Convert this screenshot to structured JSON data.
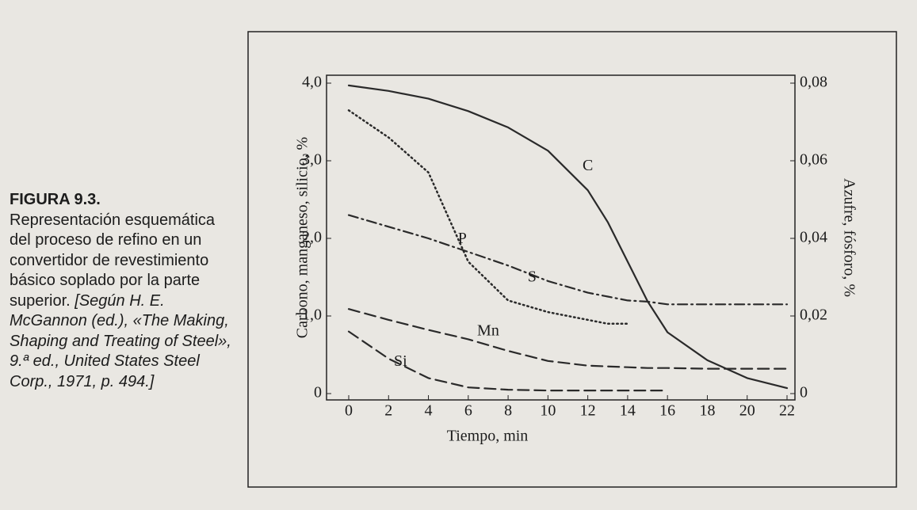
{
  "caption": {
    "label": "FIGURA 9.3.",
    "text": "Representación esquemática del proceso de refino en un convertidor de revestimiento básico soplado por la parte superior.",
    "source": "[Según H. E. McGannon (ed.), «The Making, Shaping and Treating of Steel», 9.ª ed., United States Steel Corp., 1971, p. 494.]"
  },
  "chart_data": {
    "type": "line",
    "x_label": "Tiempo, min",
    "y_label": "Carbono, manganeso, silicio, %",
    "y2_label": "Azufre, fósforo, %",
    "x": [
      0,
      2,
      4,
      6,
      8,
      10,
      12,
      13,
      14,
      15,
      16,
      18,
      20,
      22
    ],
    "xlim": [
      0,
      22
    ],
    "xticks": [
      0,
      2,
      4,
      6,
      8,
      10,
      12,
      14,
      16,
      18,
      20,
      22
    ],
    "ylim": [
      0,
      4
    ],
    "yticks": [
      0,
      {
        "value": 1,
        "label": "1,0"
      },
      {
        "value": 2,
        "label": "2,0"
      },
      {
        "value": 3,
        "label": "3,0"
      },
      {
        "value": 4,
        "label": "4,0"
      }
    ],
    "y2lim": [
      0,
      0.08
    ],
    "y2ticks": [
      0,
      {
        "value": 0.02,
        "label": "0,02"
      },
      {
        "value": 0.04,
        "label": "0,04"
      },
      {
        "value": 0.06,
        "label": "0,06"
      },
      {
        "value": 0.08,
        "label": "0,08"
      }
    ],
    "series": [
      {
        "name": "C",
        "color": "#2a2a2a",
        "dash": "solid",
        "values": [
          3.97,
          3.9,
          3.8,
          3.64,
          3.43,
          3.13,
          2.62,
          2.21,
          1.7,
          1.19,
          0.79,
          0.43,
          0.2,
          0.07
        ]
      },
      {
        "name": "P",
        "color": "#2a2a2a",
        "dash": "dotted",
        "axis": "y2",
        "values": [
          0.073,
          0.066,
          0.057,
          0.034,
          0.024,
          0.021,
          0.019,
          0.018,
          0.018,
          null,
          null,
          null,
          null,
          null
        ]
      },
      {
        "name": "S",
        "color": "#2a2a2a",
        "dash": "dashdot",
        "axis": "y2",
        "values": [
          0.046,
          0.043,
          0.04,
          0.0365,
          0.033,
          0.029,
          0.026,
          0.025,
          0.024,
          0.0237,
          0.023,
          0.023,
          0.023,
          0.023
        ]
      },
      {
        "name": "Mn",
        "color": "#2a2a2a",
        "dash": "dashed",
        "values": [
          1.09,
          0.95,
          0.82,
          0.7,
          0.55,
          0.42,
          0.36,
          0.35,
          0.34,
          0.33,
          0.33,
          0.32,
          0.32,
          0.32
        ]
      },
      {
        "name": "Si",
        "color": "#2a2a2a",
        "dash": "dashed",
        "values": [
          0.8,
          0.45,
          0.2,
          0.08,
          0.05,
          0.04,
          0.04,
          0.04,
          0.04,
          0.04,
          0.04,
          null,
          null,
          null
        ]
      }
    ]
  }
}
